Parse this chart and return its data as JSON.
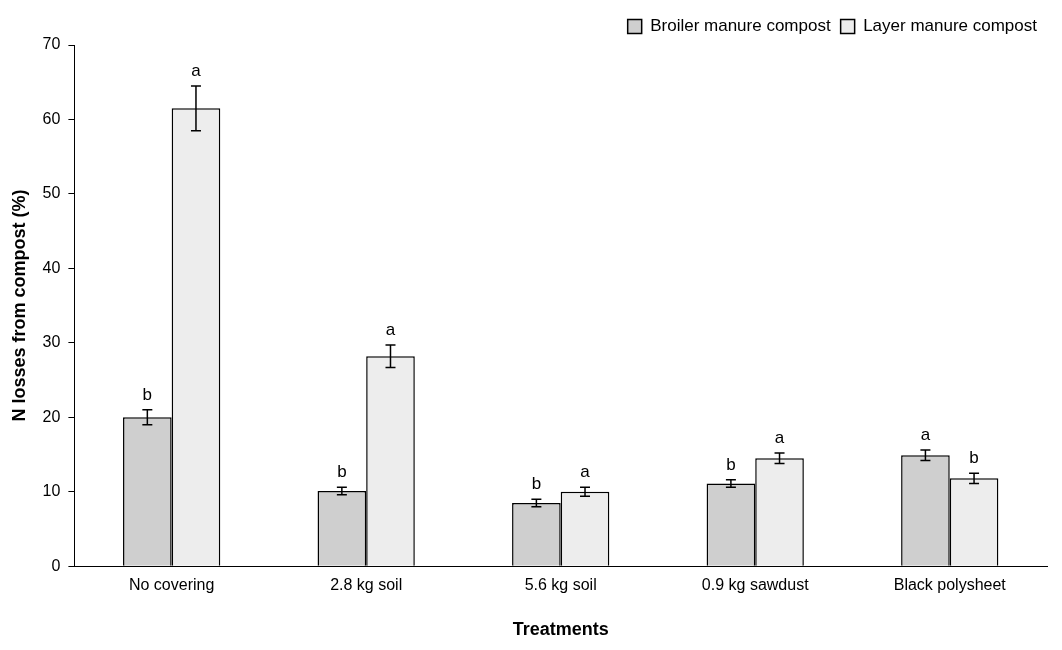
{
  "chart_data": {
    "type": "bar",
    "xlabel": "Treatments",
    "ylabel": "N losses from compost (%)",
    "categories": [
      "No covering",
      "2.8 kg soil",
      "5.6 kg soil",
      "0.9 kg sawdust",
      "Black polysheet"
    ],
    "series": [
      {
        "name": "Broiler manure compost",
        "color": "#cfcfcf",
        "values": [
          20.0,
          10.1,
          8.5,
          11.1,
          14.9
        ],
        "errors": [
          1.0,
          0.5,
          0.5,
          0.5,
          0.7
        ]
      },
      {
        "name": "Layer manure compost",
        "color": "#ededed",
        "values": [
          61.5,
          28.2,
          10.0,
          14.5,
          11.8
        ],
        "errors": [
          3.0,
          1.5,
          0.6,
          0.7,
          0.7
        ]
      }
    ],
    "annotations": [
      {
        "text": "b",
        "x": "No covering",
        "y": 20.0
      },
      {
        "text": "a",
        "x": "No covering",
        "y": 61.5
      },
      {
        "text": "b",
        "x": "2.8 kg soil",
        "y": 10.1
      },
      {
        "text": "a",
        "x": "2.8 kg soil",
        "y": 28.2
      },
      {
        "text": "b",
        "x": "5.6 kg soil",
        "y": 8.5
      },
      {
        "text": "a",
        "x": "5.6 kg soil",
        "y": 10.0
      },
      {
        "text": "b",
        "x": "0.9 kg sawdust",
        "y": 11.1
      },
      {
        "text": "a",
        "x": "0.9 kg sawdust",
        "y": 14.5
      },
      {
        "text": "a",
        "x": "Black polysheet",
        "y": 14.9
      },
      {
        "text": "b",
        "x": "Black polysheet",
        "y": 11.8
      }
    ],
    "ylim": [
      0,
      70
    ],
    "yticks": [
      0,
      10,
      20,
      30,
      40,
      50,
      60,
      70
    ],
    "grid": false,
    "legend": "top right"
  }
}
